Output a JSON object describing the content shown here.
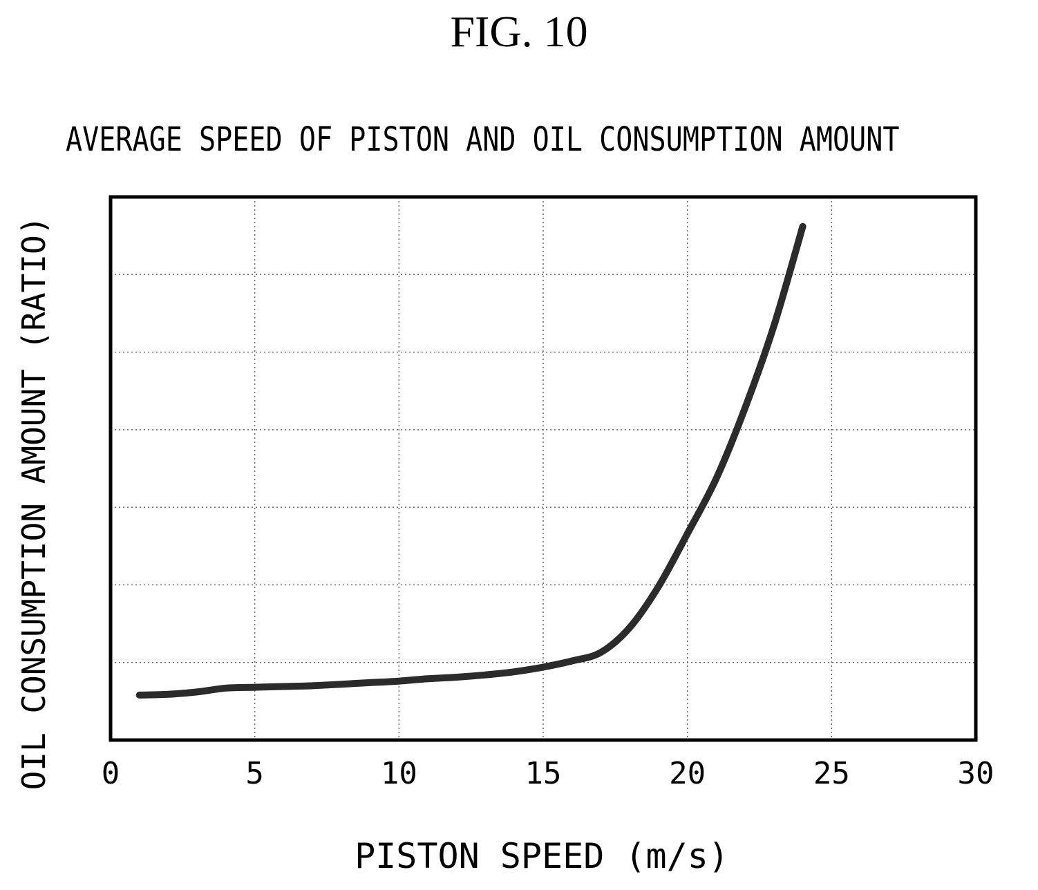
{
  "figure": {
    "label": "FIG. 10"
  },
  "chart_data": {
    "type": "line",
    "title": "AVERAGE SPEED OF PISTON AND OIL CONSUMPTION AMOUNT",
    "xlabel": "PISTON SPEED (m/s)",
    "ylabel": "OIL CONSUMPTION AMOUNT (RATIO)",
    "xlim": [
      0,
      30
    ],
    "ylim": [
      0,
      7
    ],
    "xticks": [
      0,
      5,
      10,
      15,
      20,
      25,
      30
    ],
    "yticks_unlabeled": [
      1,
      2,
      3,
      4,
      5,
      6
    ],
    "grid": true,
    "series": [
      {
        "x": [
          1,
          2,
          3,
          4,
          5,
          6,
          7,
          8,
          9,
          10,
          11,
          12,
          13,
          14,
          15,
          16,
          17,
          18,
          19,
          20,
          21,
          22,
          23,
          24
        ],
        "y": [
          0.58,
          0.59,
          0.62,
          0.67,
          0.68,
          0.69,
          0.7,
          0.72,
          0.74,
          0.76,
          0.79,
          0.81,
          0.84,
          0.88,
          0.94,
          1.02,
          1.13,
          1.45,
          1.98,
          2.66,
          3.37,
          4.28,
          5.34,
          6.62
        ]
      }
    ]
  }
}
